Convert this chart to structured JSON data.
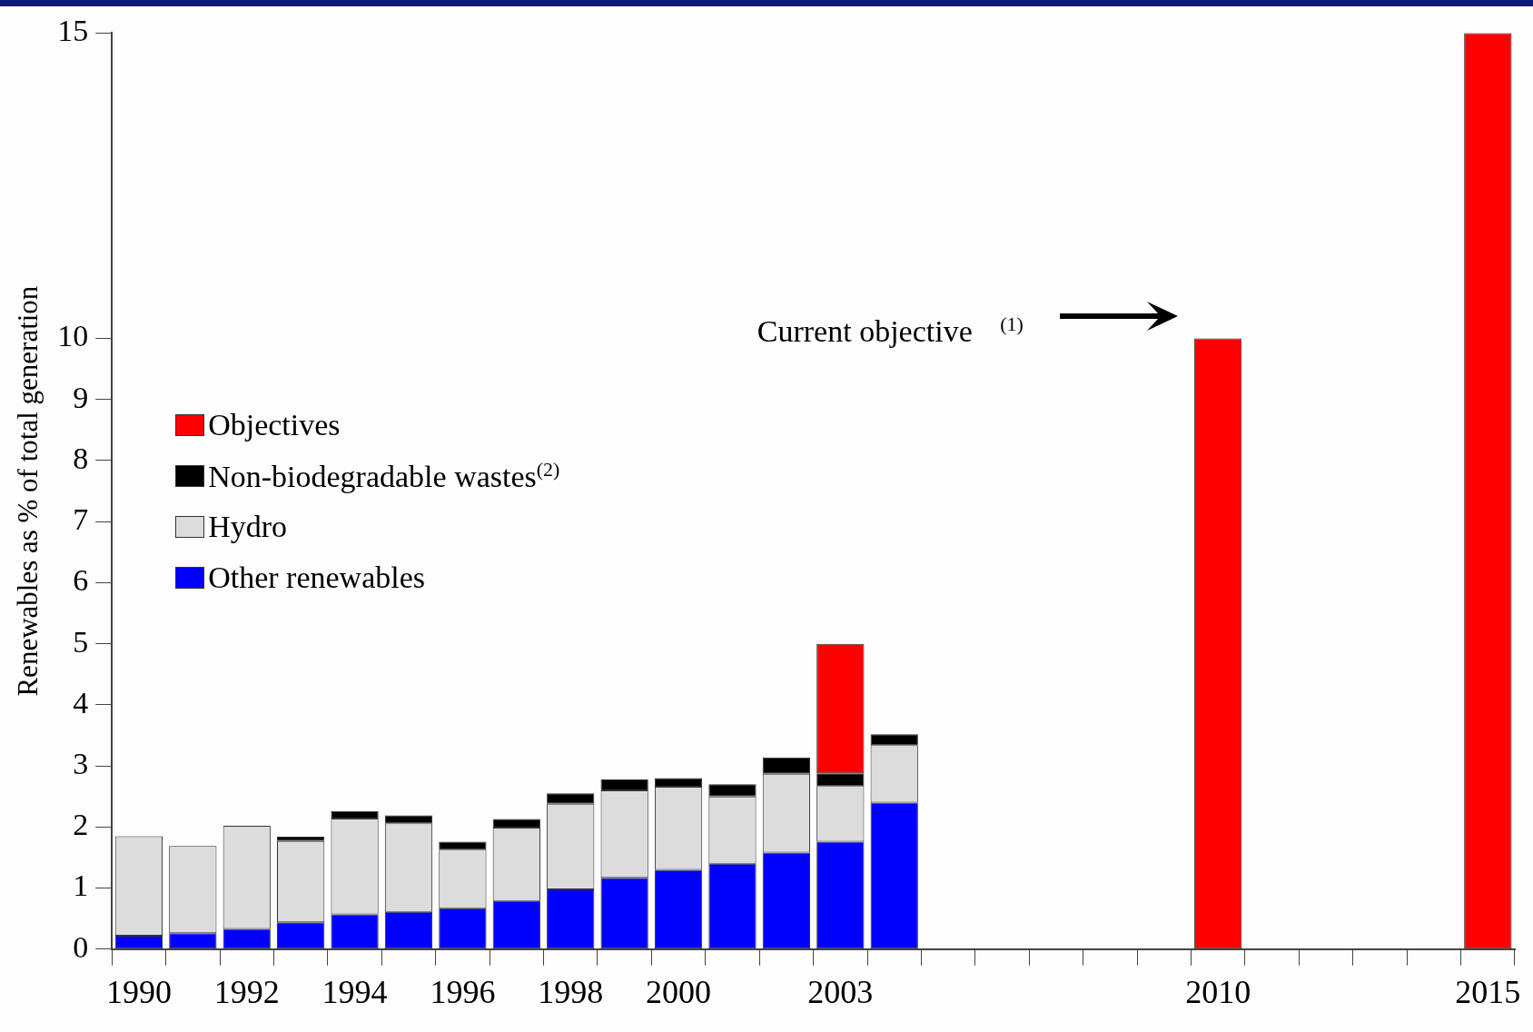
{
  "chart_data": {
    "type": "bar",
    "stacked": true,
    "ylabel": "Renewables as % of total generation",
    "categories": [
      "1990",
      null,
      "1992",
      null,
      "1994",
      null,
      "1996",
      null,
      "1998",
      null,
      "2000",
      null,
      null,
      "2003",
      null,
      null,
      null,
      null,
      null,
      null,
      "2010",
      null,
      null,
      null,
      null,
      "2015"
    ],
    "series": [
      {
        "name": "Other renewables",
        "color": "#0000ff",
        "values": [
          0.22,
          0.26,
          0.33,
          0.44,
          0.57,
          0.61,
          0.67,
          0.79,
          0.98,
          1.17,
          1.3,
          1.4,
          1.58,
          1.76,
          2.4,
          null,
          null,
          null,
          null,
          null,
          null,
          null,
          null,
          null,
          null,
          null
        ]
      },
      {
        "name": "Hydro",
        "color": "#dcdcdc",
        "values": [
          1.63,
          1.43,
          1.69,
          1.33,
          1.57,
          1.45,
          0.96,
          1.2,
          1.4,
          1.43,
          1.36,
          1.1,
          1.29,
          0.91,
          0.94,
          null,
          null,
          null,
          null,
          null,
          null,
          null,
          null,
          null,
          null,
          null
        ]
      },
      {
        "name": "Non-biodegradable wastes$^{(2)}$",
        "color": "#000000",
        "values": [
          null,
          null,
          null,
          0.07,
          0.12,
          0.13,
          0.13,
          0.14,
          0.17,
          0.18,
          0.14,
          0.2,
          0.27,
          0.21,
          0.18,
          null,
          null,
          null,
          null,
          null,
          null,
          null,
          null,
          null,
          null,
          null
        ]
      },
      {
        "name": "Objectives",
        "color": "#ff0000",
        "values": [
          null,
          null,
          null,
          null,
          null,
          null,
          null,
          null,
          null,
          null,
          null,
          null,
          null,
          2.12,
          null,
          null,
          null,
          null,
          null,
          null,
          10,
          null,
          null,
          null,
          null,
          15
        ]
      }
    ],
    "ylim": [
      0,
      15
    ],
    "yticks": [
      0,
      1,
      2,
      3,
      4,
      5,
      6,
      7,
      8,
      9,
      10,
      15
    ],
    "grid": false,
    "legend": "left",
    "annotations": [
      "Current objective $^{(1)}$"
    ]
  }
}
